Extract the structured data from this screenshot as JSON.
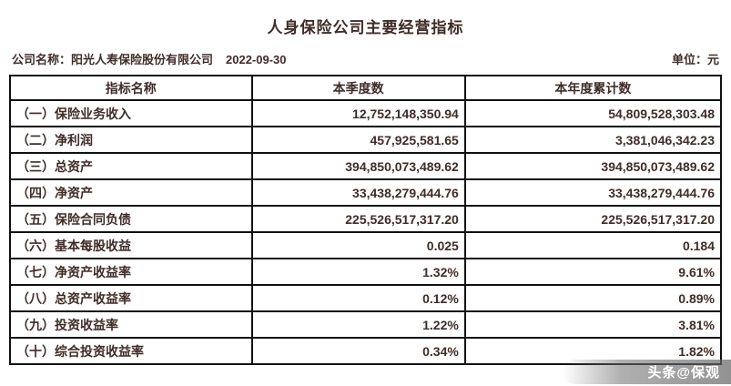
{
  "page": {
    "title": "人身保险公司主要经营指标",
    "company_label": "公司名称：阳光人寿保险股份有限公司",
    "report_date": "2022-09-30",
    "unit_label": "单位：元"
  },
  "table": {
    "headers": {
      "name": "指标名称",
      "quarter": "本季度数",
      "ytd": "本年度累计数"
    },
    "rows": [
      {
        "name": "（一）保险业务收入",
        "quarter": "12,752,148,350.94",
        "ytd": "54,809,528,303.48"
      },
      {
        "name": "（二）净利润",
        "quarter": "457,925,581.65",
        "ytd": "3,381,046,342.23"
      },
      {
        "name": "（三）总资产",
        "quarter": "394,850,073,489.62",
        "ytd": "394,850,073,489.62"
      },
      {
        "name": "（四）净资产",
        "quarter": "33,438,279,444.76",
        "ytd": "33,438,279,444.76"
      },
      {
        "name": "（五）保险合同负债",
        "quarter": "225,526,517,317.20",
        "ytd": "225,526,517,317.20"
      },
      {
        "name": "（六）基本每股收益",
        "quarter": "0.025",
        "ytd": "0.184"
      },
      {
        "name": "（七）净资产收益率",
        "quarter": "1.32%",
        "ytd": "9.61%"
      },
      {
        "name": "（八）总资产收益率",
        "quarter": "0.12%",
        "ytd": "0.89%"
      },
      {
        "name": "（九）投资收益率",
        "quarter": "1.22%",
        "ytd": "3.81%"
      },
      {
        "name": "（十）综合投资收益率",
        "quarter": "0.34%",
        "ytd": "1.82%"
      }
    ]
  },
  "watermark": {
    "label": "头条@保观"
  }
}
